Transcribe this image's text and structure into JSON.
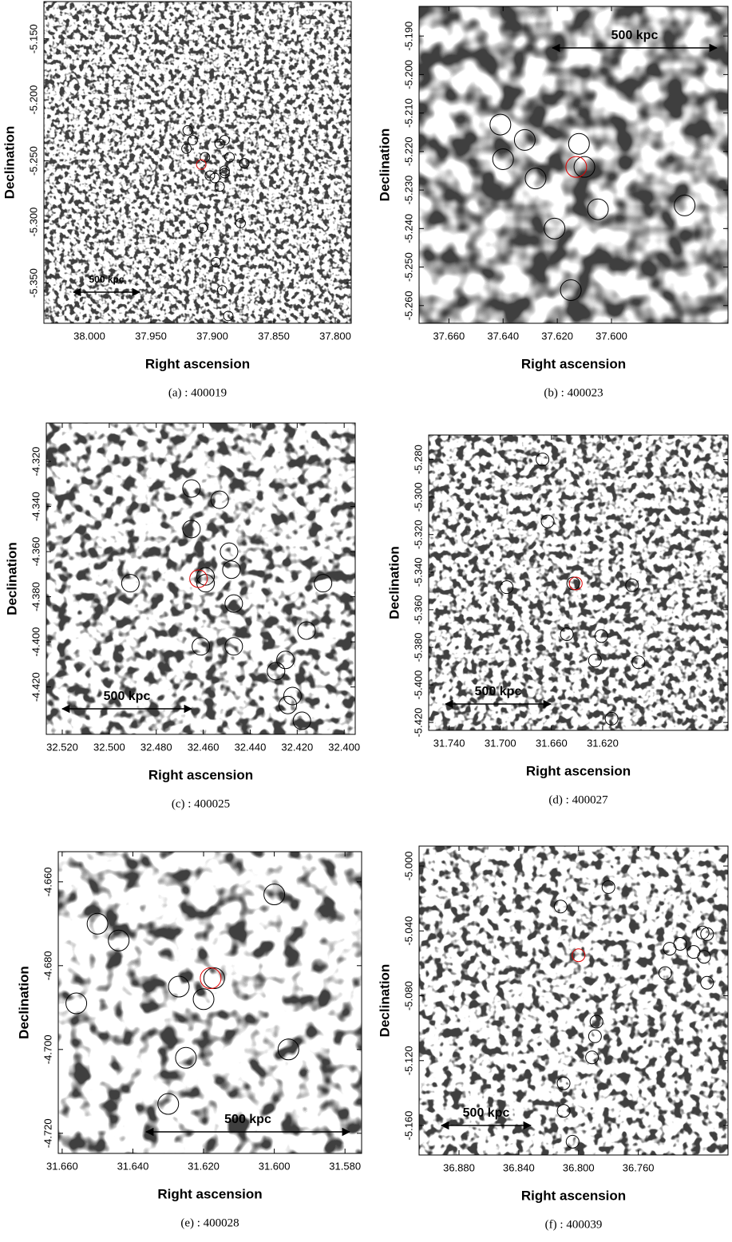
{
  "chart_data": [
    {
      "type": "scatter",
      "caption": "(a) : 400019",
      "xlabel": "Right ascension",
      "ylabel": "Declination",
      "annotation": "500 kpc",
      "xlim": [
        38.037,
        37.787
      ],
      "ylim": [
        -5.383,
        -5.1195
      ],
      "xticks": [
        {
          "value": 38,
          "label": "38.000"
        },
        {
          "value": 37.95,
          "label": "37.950"
        },
        {
          "value": 37.9,
          "label": "37.900"
        },
        {
          "value": 37.85,
          "label": "37.850"
        },
        {
          "value": 37.8,
          "label": "37.800"
        }
      ],
      "yticks": [
        {
          "value": -5.15,
          "label": "-5.150"
        },
        {
          "value": -5.2,
          "label": "-5.200"
        },
        {
          "value": -5.25,
          "label": "-5.250"
        },
        {
          "value": -5.3,
          "label": "-5.300"
        },
        {
          "value": -5.35,
          "label": "-5.350"
        }
      ],
      "series": [
        {
          "color": "#000000",
          "x": [
            37.92,
            37.916,
            37.921,
            37.89,
            37.894,
            37.886,
            37.906,
            37.874,
            37.902,
            37.898,
            37.89,
            37.89,
            37.894,
            37.908,
            37.877,
            37.897,
            37.892,
            37.887
          ],
          "values": [
            -5.225,
            -5.233,
            -5.24,
            -5.233,
            -5.236,
            -5.247,
            -5.247,
            -5.252,
            -5.262,
            -5.264,
            -5.26,
            -5.258,
            -5.271,
            -5.305,
            -5.301,
            -5.333,
            -5.356,
            -5.377
          ]
        },
        {
          "color": "#e00000",
          "x": [
            37.909
          ],
          "values": [
            -5.253
          ]
        }
      ]
    },
    {
      "type": "scatter",
      "caption": "(b) : 400023",
      "xlabel": "Right ascension",
      "ylabel": "Declination",
      "annotation": "500 kpc",
      "xlim": [
        37.671,
        37.557
      ],
      "ylim": [
        -5.2646,
        -5.1823
      ],
      "xticks": [
        {
          "value": 37.66,
          "label": "37.660"
        },
        {
          "value": 37.64,
          "label": "37.640"
        },
        {
          "value": 37.62,
          "label": "37.620"
        },
        {
          "value": 37.6,
          "label": "37.600"
        }
      ],
      "yticks": [
        {
          "value": -5.19,
          "label": "-5.190"
        },
        {
          "value": -5.2,
          "label": "-5.200"
        },
        {
          "value": -5.21,
          "label": "-5.210"
        },
        {
          "value": -5.22,
          "label": "-5.220"
        },
        {
          "value": -5.23,
          "label": "-5.230"
        },
        {
          "value": -5.24,
          "label": "-5.240"
        },
        {
          "value": -5.25,
          "label": "-5.250"
        },
        {
          "value": -5.26,
          "label": "-5.260"
        }
      ],
      "series": [
        {
          "color": "#000000",
          "x": [
            37.641,
            37.632,
            37.64,
            37.612,
            37.628,
            37.61,
            37.605,
            37.573,
            37.621,
            37.615
          ],
          "values": [
            -5.213,
            -5.217,
            -5.222,
            -5.218,
            -5.227,
            -5.224,
            -5.235,
            -5.234,
            -5.24,
            -5.256
          ]
        },
        {
          "color": "#e00000",
          "x": [
            37.613
          ],
          "values": [
            -5.224
          ]
        }
      ]
    },
    {
      "type": "scatter",
      "caption": "(c) : 400025",
      "xlabel": "Right ascension",
      "ylabel": "Declination",
      "annotation": "500 kpc",
      "xlim": [
        32.5268,
        32.3953
      ],
      "ylim": [
        -4.441,
        -4.303
      ],
      "xticks": [
        {
          "value": 32.52,
          "label": "32.520"
        },
        {
          "value": 32.5,
          "label": "32.500"
        },
        {
          "value": 32.48,
          "label": "32.480"
        },
        {
          "value": 32.46,
          "label": "32.460"
        },
        {
          "value": 32.44,
          "label": "32.440"
        },
        {
          "value": 32.42,
          "label": "32.420"
        },
        {
          "value": 32.4,
          "label": "32.400"
        }
      ],
      "yticks": [
        {
          "value": -4.32,
          "label": "-4.320"
        },
        {
          "value": -4.34,
          "label": "-4.340"
        },
        {
          "value": -4.36,
          "label": "-4.360"
        },
        {
          "value": -4.38,
          "label": "-4.380"
        },
        {
          "value": -4.4,
          "label": "-4.400"
        },
        {
          "value": -4.42,
          "label": "-4.420"
        }
      ],
      "series": [
        {
          "color": "#000000",
          "x": [
            32.465,
            32.453,
            32.465,
            32.449,
            32.448,
            32.491,
            32.459,
            32.459,
            32.447,
            32.409,
            32.416,
            32.461,
            32.447,
            32.425,
            32.429,
            32.422,
            32.424,
            32.418
          ],
          "values": [
            -4.332,
            -4.337,
            -4.35,
            -4.36,
            -4.368,
            -4.374,
            -4.371,
            -4.374,
            -4.383,
            -4.374,
            -4.395,
            -4.402,
            -4.402,
            -4.408,
            -4.413,
            -4.424,
            -4.428,
            -4.435
          ]
        },
        {
          "color": "#e00000",
          "x": [
            32.462
          ],
          "values": [
            -4.372
          ]
        }
      ]
    },
    {
      "type": "scatter",
      "caption": "(d) : 400027",
      "xlabel": "Right ascension",
      "ylabel": "Declination",
      "annotation": "500 kpc",
      "xlim": [
        31.756,
        31.522
      ],
      "ylim": [
        -5.4242,
        -5.267
      ],
      "xticks": [
        {
          "value": 31.74,
          "label": "31.740"
        },
        {
          "value": 31.7,
          "label": "31.700"
        },
        {
          "value": 31.66,
          "label": "31.660"
        },
        {
          "value": 31.62,
          "label": "31.620"
        }
      ],
      "yticks": [
        {
          "value": -5.28,
          "label": "-5.280"
        },
        {
          "value": -5.3,
          "label": "-5.300"
        },
        {
          "value": -5.32,
          "label": "-5.320"
        },
        {
          "value": -5.34,
          "label": "-5.340"
        },
        {
          "value": -5.36,
          "label": "-5.360"
        },
        {
          "value": -5.38,
          "label": "-5.380"
        },
        {
          "value": -5.4,
          "label": "-5.400"
        },
        {
          "value": -5.42,
          "label": "-5.420"
        }
      ],
      "series": [
        {
          "color": "#000000",
          "x": [
            31.667,
            31.663,
            31.695,
            31.643,
            31.597,
            31.648,
            31.621,
            31.626,
            31.592,
            31.613
          ],
          "values": [
            -5.28,
            -5.313,
            -5.348,
            -5.346,
            -5.347,
            -5.373,
            -5.374,
            -5.387,
            -5.388,
            -5.418
          ]
        },
        {
          "color": "#e00000",
          "x": [
            31.641
          ],
          "values": [
            -5.346
          ]
        }
      ]
    },
    {
      "type": "scatter",
      "caption": "(e) : 400028",
      "xlabel": "Right ascension",
      "ylabel": "Declination",
      "annotation": "500 kpc",
      "xlim": [
        31.6611,
        31.5753
      ],
      "ylim": [
        -4.7248,
        -4.6528
      ],
      "xticks": [
        {
          "value": 31.66,
          "label": "31.660"
        },
        {
          "value": 31.64,
          "label": "31.640"
        },
        {
          "value": 31.62,
          "label": "31.620"
        },
        {
          "value": 31.6,
          "label": "31.600"
        },
        {
          "value": 31.58,
          "label": "31.580"
        }
      ],
      "yticks": [
        {
          "value": -4.66,
          "label": "-4.660"
        },
        {
          "value": -4.68,
          "label": "-4.680"
        },
        {
          "value": -4.7,
          "label": "-4.700"
        },
        {
          "value": -4.72,
          "label": "-4.720"
        }
      ],
      "series": [
        {
          "color": "#000000",
          "x": [
            31.6,
            31.65,
            31.644,
            31.656,
            31.627,
            31.62,
            31.617,
            31.596,
            31.625,
            31.63
          ],
          "values": [
            -4.663,
            -4.67,
            -4.674,
            -4.689,
            -4.685,
            -4.688,
            -4.683,
            -4.7,
            -4.702,
            -4.713
          ]
        },
        {
          "color": "#e00000",
          "x": [
            31.618
          ],
          "values": [
            -4.683
          ]
        }
      ]
    },
    {
      "type": "scatter",
      "caption": "(f) : 400039",
      "xlabel": "Right ascension",
      "ylabel": "Declination",
      "annotation": "500 kpc",
      "xlim": [
        36.9067,
        36.7
      ],
      "ylim": [
        -5.1782,
        -4.9877
      ],
      "xticks": [
        {
          "value": 36.88,
          "label": "36.880"
        },
        {
          "value": 36.84,
          "label": "36.840"
        },
        {
          "value": 36.8,
          "label": "36.800"
        },
        {
          "value": 36.76,
          "label": "36.760"
        }
      ],
      "yticks": [
        {
          "value": -5,
          "label": "-5.000"
        },
        {
          "value": -5.04,
          "label": "-5.040"
        },
        {
          "value": -5.08,
          "label": "-5.080"
        },
        {
          "value": -5.12,
          "label": "-5.120"
        },
        {
          "value": -5.16,
          "label": "-5.160"
        }
      ],
      "series": [
        {
          "color": "#000000",
          "x": [
            36.78,
            36.812,
            36.739,
            36.732,
            36.723,
            36.717,
            36.714,
            36.716,
            36.742,
            36.714,
            36.788,
            36.789,
            36.791,
            36.81,
            36.81,
            36.804
          ],
          "values": [
            -5.013,
            -5.025,
            -5.051,
            -5.048,
            -5.053,
            -5.041,
            -5.042,
            -5.056,
            -5.066,
            -5.072,
            -5.096,
            -5.105,
            -5.118,
            -5.134,
            -5.151,
            -5.17
          ]
        },
        {
          "color": "#e00000",
          "x": [
            36.8
          ],
          "values": [
            -5.055
          ]
        }
      ]
    }
  ]
}
